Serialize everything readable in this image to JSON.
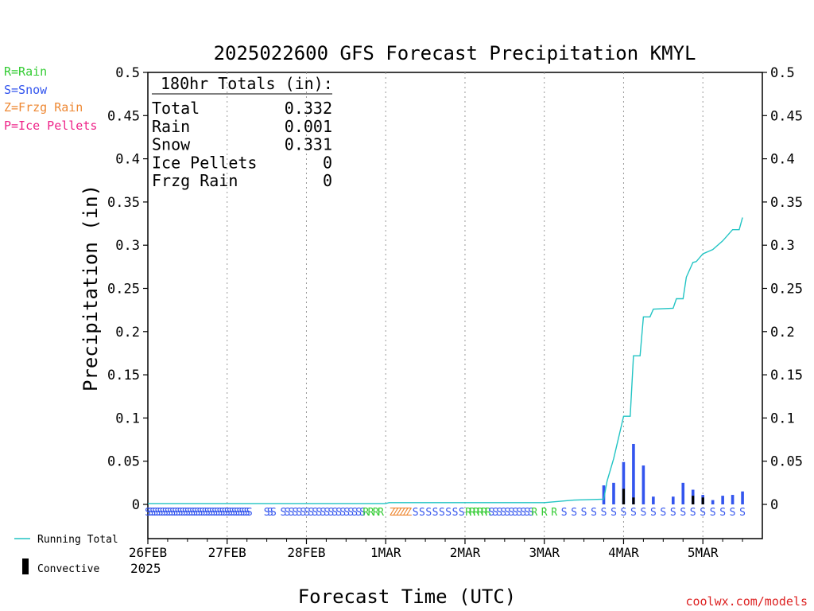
{
  "chart_data": {
    "type": "bar",
    "title": "2025022600 GFS Forecast Precipitation KMYL",
    "xlabel": "Forecast Time (UTC)",
    "ylabel": "Precipitation (in)",
    "ylim": [
      0,
      0.5
    ],
    "xlim_hours": [
      0,
      186
    ],
    "y_ticks": [
      "0",
      "0.05",
      "0.1",
      "0.15",
      "0.2",
      "0.25",
      "0.3",
      "0.35",
      "0.4",
      "0.45",
      "0.5"
    ],
    "x_ticks": [
      {
        "hour": 0,
        "label": "26FEB"
      },
      {
        "hour": 24,
        "label": "27FEB"
      },
      {
        "hour": 48,
        "label": "28FEB"
      },
      {
        "hour": 72,
        "label": "1MAR"
      },
      {
        "hour": 96,
        "label": "2MAR"
      },
      {
        "hour": 120,
        "label": "3MAR"
      },
      {
        "hour": 144,
        "label": "4MAR"
      },
      {
        "hour": 168,
        "label": "5MAR"
      }
    ],
    "year_label": "2025",
    "grid": "vertical dotted at day boundaries",
    "legend_type": [
      {
        "label": "R=Rain",
        "color": "#33cc33"
      },
      {
        "label": "S=Snow",
        "color": "#3355ee"
      },
      {
        "label": "Z=Frzg Rain",
        "color": "#ee8833"
      },
      {
        "label": "P=Ice Pellets",
        "color": "#ee2288"
      }
    ],
    "legend_series": [
      {
        "label": "Running Total",
        "color": "#22c4c4"
      },
      {
        "label": "Convective",
        "color": "#000000"
      }
    ],
    "totals": {
      "header": "180hr Totals (in):",
      "rows": [
        {
          "label": "Total",
          "value": "0.332"
        },
        {
          "label": "Rain",
          "value": "0.001"
        },
        {
          "label": "Snow",
          "value": "0.331"
        },
        {
          "label": "Ice Pellets",
          "value": "0"
        },
        {
          "label": "Frzg Rain",
          "value": "0"
        }
      ]
    },
    "series": [
      {
        "name": "Snow",
        "color": "#3355ee",
        "points": [
          [
            138,
            0.022
          ],
          [
            141,
            0.025
          ],
          [
            144,
            0.049
          ],
          [
            147,
            0.07
          ],
          [
            150,
            0.045
          ],
          [
            153,
            0.009
          ],
          [
            159,
            0.009
          ],
          [
            162,
            0.025
          ],
          [
            165,
            0.017
          ],
          [
            168,
            0.011
          ],
          [
            171,
            0.005
          ],
          [
            174,
            0.01
          ],
          [
            177,
            0.011
          ],
          [
            180,
            0.015
          ]
        ]
      },
      {
        "name": "Convective",
        "color": "#000000",
        "points": [
          [
            144,
            0.018
          ],
          [
            147,
            0.008
          ],
          [
            165,
            0.01
          ],
          [
            168,
            0.008
          ]
        ]
      },
      {
        "name": "Running Total",
        "color": "#22c4c4",
        "points": [
          [
            0,
            0.001
          ],
          [
            72,
            0.001
          ],
          [
            73,
            0.002
          ],
          [
            120,
            0.002
          ],
          [
            129,
            0.005
          ],
          [
            138,
            0.006
          ],
          [
            139,
            0.027
          ],
          [
            141,
            0.053
          ],
          [
            144,
            0.102
          ],
          [
            146,
            0.102
          ],
          [
            147,
            0.172
          ],
          [
            149,
            0.172
          ],
          [
            150,
            0.217
          ],
          [
            152,
            0.217
          ],
          [
            153,
            0.226
          ],
          [
            159,
            0.227
          ],
          [
            160,
            0.238
          ],
          [
            162,
            0.238
          ],
          [
            163,
            0.263
          ],
          [
            165,
            0.28
          ],
          [
            166,
            0.281
          ],
          [
            168,
            0.29
          ],
          [
            171,
            0.295
          ],
          [
            174,
            0.305
          ],
          [
            177,
            0.318
          ],
          [
            179,
            0.318
          ],
          [
            180,
            0.332
          ]
        ]
      }
    ],
    "ptype_markers": {
      "segments": [
        {
          "start": 0,
          "end": 31,
          "step": 0.75,
          "type": "S"
        },
        {
          "start": 36,
          "end": 38,
          "step": 1,
          "type": "S"
        },
        {
          "start": 41,
          "end": 65,
          "step": 1.2,
          "type": "S"
        },
        {
          "start": 66,
          "end": 71,
          "step": 1.5,
          "type": "R"
        },
        {
          "start": 74,
          "end": 79,
          "step": 1,
          "type": "Z"
        },
        {
          "start": 81,
          "end": 96,
          "step": 2,
          "type": "S"
        },
        {
          "start": 97,
          "end": 103,
          "step": 1.2,
          "type": "R"
        },
        {
          "start": 104,
          "end": 117,
          "step": 1.2,
          "type": "S"
        },
        {
          "start": 117,
          "end": 123,
          "step": 3,
          "type": "R"
        },
        {
          "start": 126,
          "end": 180,
          "step": 3,
          "type": "S"
        }
      ]
    }
  },
  "footer": {
    "credit": "coolwx.com/models"
  },
  "colors": {
    "snow": "#3355ee",
    "rain": "#33cc33",
    "frzg_rain": "#ee8833",
    "ice_pellets": "#ee2288",
    "running_total": "#22c4c4",
    "convective": "#000000",
    "credit": "#dd2222"
  }
}
